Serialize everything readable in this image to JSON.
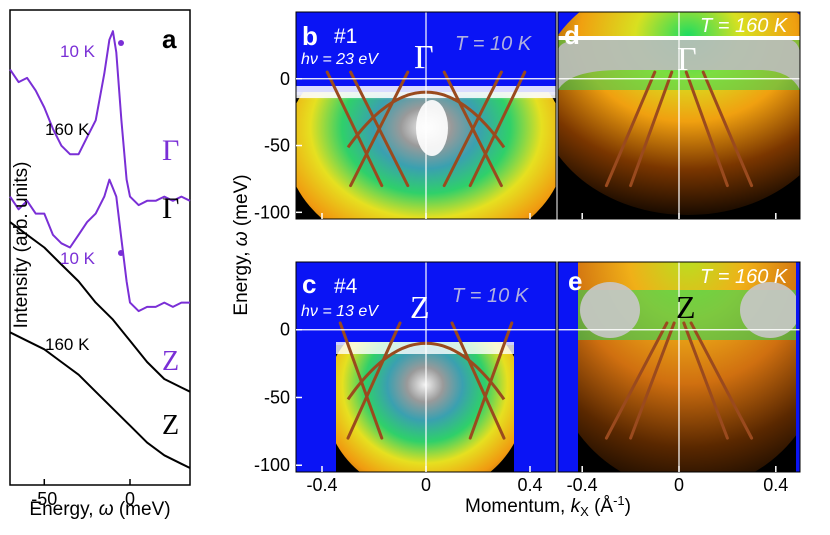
{
  "figure": {
    "xlabel_spec_prefix": "Energy, ",
    "xlabel_spec_sym": "ω",
    "xlabel_spec_unit": " (meV)",
    "ylabel_spec": "Intensity (arb. units)",
    "ylabel_maps_prefix": "Energy, ",
    "ylabel_maps_sym": "ω",
    "ylabel_maps_unit": " (meV)",
    "xlabel_maps_prefix": "Momentum, ",
    "xlabel_maps_sym": "k",
    "xlabel_maps_sub": "X",
    "xlabel_maps_unit": " (Å",
    "xlabel_maps_exp": "-1",
    "xlabel_maps_close": ")"
  },
  "panels": {
    "a": {
      "letter": "a"
    },
    "b": {
      "letter": "b",
      "sample": "#1",
      "photon": "hν = 23 eV",
      "temp": "T = 10 K",
      "point": "Γ"
    },
    "c": {
      "letter": "c",
      "sample": "#4",
      "photon": "hν = 13 eV",
      "temp": "T = 10 K",
      "point": "Z"
    },
    "d": {
      "letter": "d",
      "temp": "T = 160 K",
      "point": "Γ"
    },
    "e": {
      "letter": "e",
      "temp": "T = 160 K",
      "point": "Z"
    }
  },
  "colors": {
    "low_T": "#7a2fd6",
    "high_T": "#000000",
    "band": "#9a4a1e",
    "background": "#0a14f5"
  },
  "chart_data": [
    {
      "type": "line",
      "panel": "a",
      "xlabel": "Energy, ω (meV)",
      "ylabel": "Intensity (arb. units)",
      "xlim": [
        -70,
        35
      ],
      "xticks": [
        -50,
        0
      ],
      "series": [
        {
          "name": "10 K",
          "label": "10 K",
          "point": "Γ",
          "x": [
            -70,
            -65,
            -60,
            -55,
            -50,
            -45,
            -40,
            -35,
            -30,
            -25,
            -20,
            -15,
            -12,
            -10,
            -8,
            -5,
            -2,
            0,
            5,
            10,
            15,
            20,
            25,
            30,
            35
          ],
          "y": [
            0.86,
            0.83,
            0.84,
            0.81,
            0.77,
            0.72,
            0.68,
            0.66,
            0.66,
            0.7,
            0.74,
            0.85,
            0.93,
            0.95,
            0.9,
            0.74,
            0.6,
            0.56,
            0.54,
            0.55,
            0.55,
            0.56,
            0.55,
            0.56,
            0.55
          ]
        },
        {
          "name": "160 K",
          "label": "160 K",
          "point": "Γ",
          "x": [
            -70,
            -60,
            -50,
            -40,
            -30,
            -20,
            -10,
            0,
            10,
            20,
            30,
            35
          ],
          "y": [
            0.5,
            0.47,
            0.44,
            0.4,
            0.36,
            0.31,
            0.27,
            0.22,
            0.17,
            0.13,
            0.11,
            0.1
          ]
        },
        {
          "name": "10 K",
          "label": "10 K",
          "point": "Z",
          "x": [
            -70,
            -65,
            -60,
            -55,
            -50,
            -45,
            -40,
            -35,
            -30,
            -25,
            -20,
            -15,
            -12,
            -10,
            -8,
            -5,
            -2,
            0,
            5,
            10,
            15,
            20,
            25,
            30,
            35
          ],
          "y": [
            0.56,
            0.53,
            0.55,
            0.52,
            0.52,
            0.47,
            0.45,
            0.44,
            0.47,
            0.5,
            0.52,
            0.56,
            0.6,
            0.58,
            0.56,
            0.46,
            0.36,
            0.31,
            0.29,
            0.3,
            0.3,
            0.31,
            0.3,
            0.31,
            0.31
          ]
        },
        {
          "name": "160 K",
          "label": "160 K",
          "point": "Z",
          "x": [
            -70,
            -60,
            -50,
            -40,
            -30,
            -20,
            -10,
            0,
            10,
            20,
            30,
            35
          ],
          "y": [
            0.24,
            0.22,
            0.2,
            0.17,
            0.14,
            0.1,
            0.06,
            0.02,
            -0.02,
            -0.05,
            -0.07,
            -0.08
          ]
        }
      ]
    },
    {
      "type": "heatmap",
      "panels": [
        "b",
        "c",
        "d",
        "e"
      ],
      "xlabel": "Momentum, kX (Å-1)",
      "ylabel": "Energy, ω (meV)",
      "xlim": [
        -0.5,
        0.5
      ],
      "xticks": [
        -0.4,
        0,
        0.4
      ],
      "ylim": [
        -105,
        50
      ],
      "yticks": [
        0,
        -50,
        -100
      ]
    }
  ]
}
